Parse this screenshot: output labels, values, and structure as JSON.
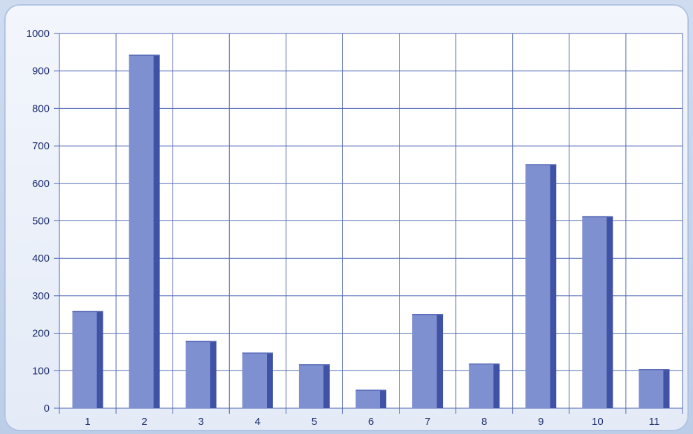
{
  "chart_data": {
    "type": "bar",
    "categories": [
      "1",
      "2",
      "3",
      "4",
      "5",
      "6",
      "7",
      "8",
      "9",
      "10",
      "11"
    ],
    "values": [
      258,
      942,
      178,
      147,
      116,
      48,
      250,
      118,
      650,
      511,
      103
    ],
    "ylim": [
      0,
      1000
    ],
    "yticks": [
      "0",
      "100",
      "200",
      "300",
      "400",
      "500",
      "600",
      "700",
      "800",
      "900",
      "1000"
    ],
    "grid": true,
    "bar_color": "#7f90d1",
    "bar_shadow_color": "#3f52a6",
    "grid_color": "#4f66b3"
  }
}
